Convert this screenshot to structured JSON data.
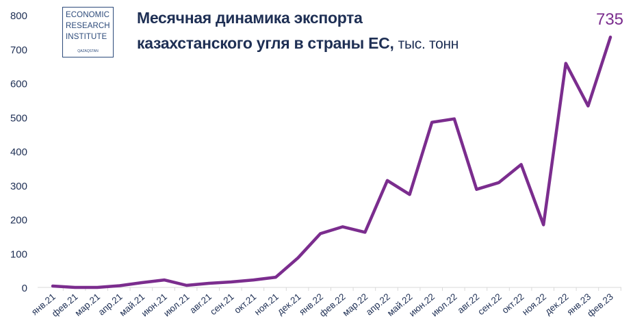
{
  "logo": {
    "line1": "ECONOMIC",
    "line2": "RESEARCH",
    "line3": "INSTITUTE",
    "sub": "QAZAQSTAN"
  },
  "title": {
    "line1": "Месячная динамика экспорта",
    "line2_main": "казахстанского угля в страны ЕС,",
    "line2_unit": "тыс. тонн"
  },
  "colors": {
    "line": "#7b2d8e",
    "text": "#1e2f54",
    "axis": "#d9d9d9"
  },
  "chart_data": {
    "type": "line",
    "categories": [
      "янв.21",
      "фев.21",
      "мар.21",
      "апр.21",
      "май.21",
      "июн.21",
      "июл.21",
      "авг.21",
      "сен.21",
      "окт.21",
      "ноя.21",
      "дек.21",
      "янв.22",
      "фев.22",
      "мар.22",
      "апр.22",
      "май.22",
      "июн.22",
      "июл.22",
      "авг.22",
      "сен.22",
      "окт.22",
      "ноя.22",
      "дек.22",
      "янв.23",
      "фев.23"
    ],
    "series": [
      {
        "values": [
          4,
          0,
          0,
          5,
          14,
          22,
          6,
          12,
          16,
          22,
          30,
          87,
          158,
          178,
          162,
          314,
          273,
          485,
          495,
          288,
          308,
          361,
          184,
          658,
          533,
          735
        ]
      }
    ],
    "ylim": [
      0,
      800
    ],
    "yticks": [
      0,
      100,
      200,
      300,
      400,
      500,
      600,
      700,
      800
    ],
    "grid": false,
    "last_label": "735"
  }
}
